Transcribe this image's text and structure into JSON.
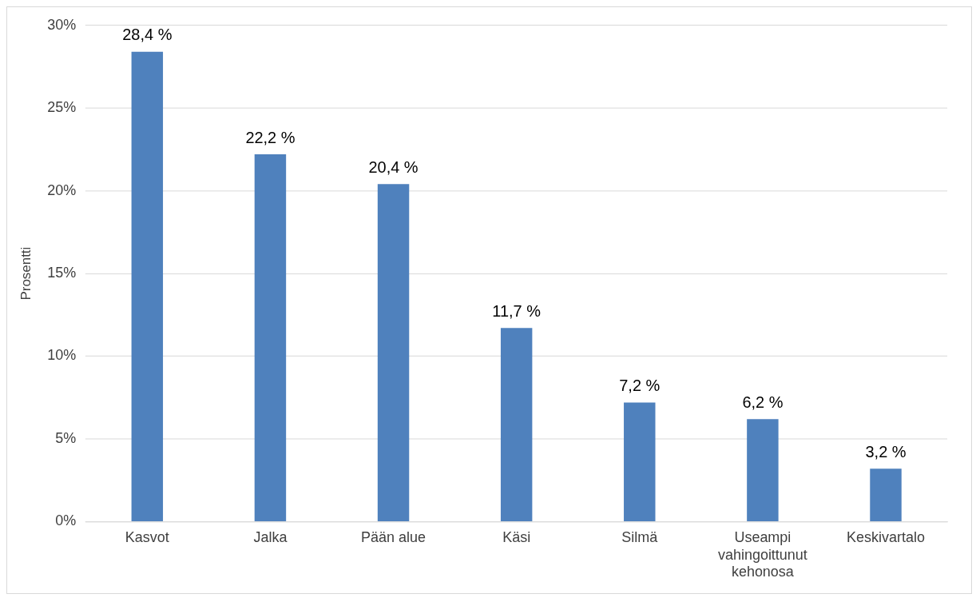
{
  "chart_data": {
    "type": "bar",
    "ylabel": "Prosentti",
    "categories": [
      "Kasvot",
      "Jalka",
      "Pään alue",
      "Käsi",
      "Silmä",
      "Useampi vahingoittunut kehonosa",
      "Keskivartalo"
    ],
    "values": [
      28.4,
      22.2,
      20.4,
      11.7,
      7.2,
      6.2,
      3.2
    ],
    "value_labels": [
      "28,4 %",
      "22,2 %",
      "20,4 %",
      "11,7 %",
      "7,2 %",
      "6,2 %",
      "3,2 %"
    ],
    "color": "#4f81bd",
    "ylim": [
      0,
      30
    ],
    "yticks": [
      {
        "value": 0,
        "label": "0%"
      },
      {
        "value": 5,
        "label": "5%"
      },
      {
        "value": 10,
        "label": "10%"
      },
      {
        "value": 15,
        "label": "15%"
      },
      {
        "value": 20,
        "label": "20%"
      },
      {
        "value": 25,
        "label": "25%"
      },
      {
        "value": 30,
        "label": "30%"
      }
    ],
    "grid": "y",
    "legend": false
  }
}
